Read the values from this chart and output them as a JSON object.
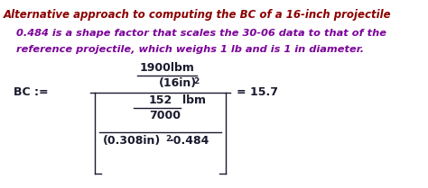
{
  "title_line": "Alternative approach to computing the BC of a 16-inch projectile",
  "subtitle_line1": "0.484 is a shape factor that scales the 30-06 data to that of the",
  "subtitle_line2": "reference projectile, which weighs 1 lb and is 1 in diameter.",
  "title_color": "#8B0000",
  "subtitle_color": "#7B0099",
  "formula_color": "#1a1a2e",
  "bg_color": "#FFFFFF",
  "fig_width": 4.74,
  "fig_height": 2.09,
  "dpi": 100
}
